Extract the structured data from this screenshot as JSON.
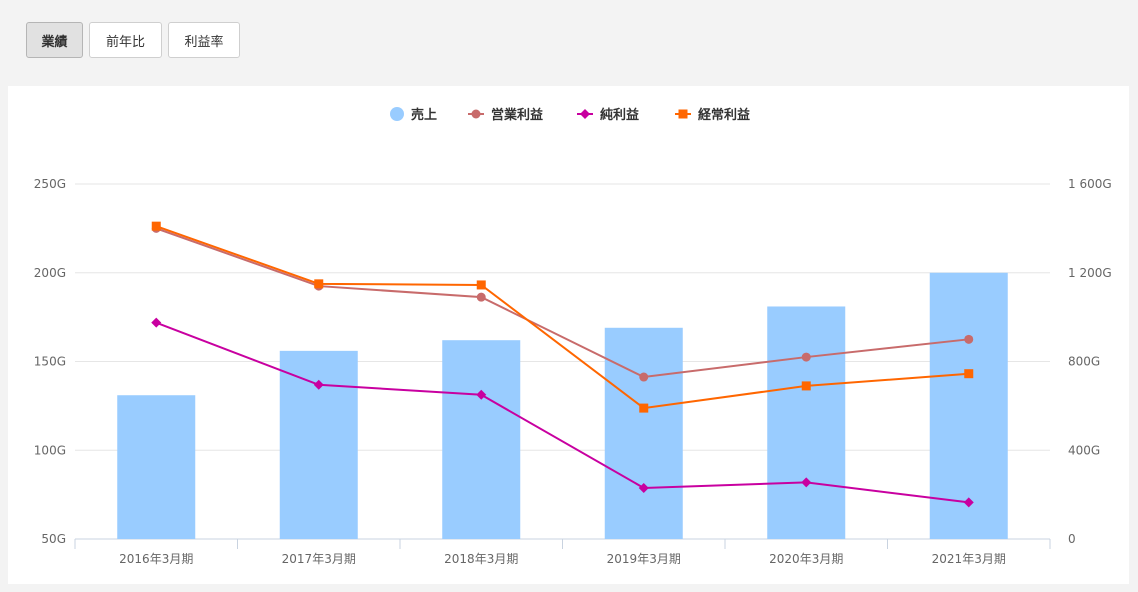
{
  "tabs": [
    {
      "label": "業績",
      "active": true
    },
    {
      "label": "前年比",
      "active": false
    },
    {
      "label": "利益率",
      "active": false
    }
  ],
  "chart_data": {
    "type": "bar",
    "categories": [
      "2016年3月期",
      "2017年3月期",
      "2018年3月期",
      "2019年3月期",
      "2020年3月期",
      "2021年3月期"
    ],
    "left_axis": {
      "ticks": [
        "250G",
        "200G",
        "150G",
        "100G",
        "50G"
      ],
      "values": [
        250,
        200,
        150,
        100,
        50
      ],
      "ylim": [
        50,
        250
      ]
    },
    "right_axis": {
      "ticks": [
        "1 600G",
        "1 200G",
        "800G",
        "400G",
        "0"
      ],
      "values": [
        1600,
        1200,
        800,
        400,
        0
      ],
      "ylim": [
        0,
        1600
      ]
    },
    "grid": true,
    "legend_position": "top-center",
    "series": [
      {
        "name": "売上",
        "type": "bar",
        "axis": "left",
        "color": "#99ccff",
        "marker": "circle",
        "values": [
          131,
          156,
          162,
          169,
          181,
          200
        ]
      },
      {
        "name": "営業利益",
        "type": "line",
        "axis": "right",
        "color": "#c86b6b",
        "marker": "circle",
        "values": [
          1400,
          1140,
          1090,
          730,
          820,
          900
        ]
      },
      {
        "name": "純利益",
        "type": "line",
        "axis": "right",
        "color": "#c800a0",
        "marker": "diamond",
        "values": [
          975,
          695,
          650,
          230,
          255,
          165
        ]
      },
      {
        "name": "経常利益",
        "type": "line",
        "axis": "right",
        "color": "#ff6600",
        "marker": "square",
        "values": [
          1410,
          1150,
          1145,
          590,
          690,
          745
        ]
      }
    ]
  }
}
